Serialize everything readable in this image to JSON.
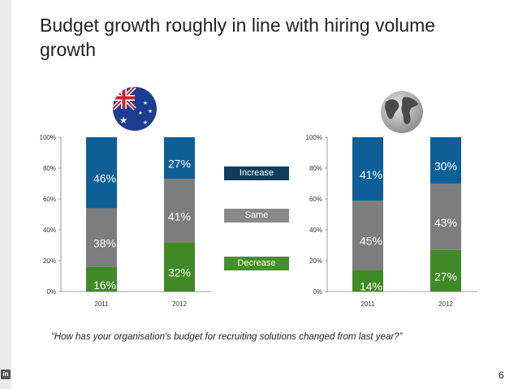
{
  "slide": {
    "title": "Budget growth roughly in line with hiring volume growth",
    "quote": "“How has your organisation's budget for recruiting solutions changed from last year?”",
    "page_number": "6",
    "brand_icon_text": "in"
  },
  "legend": {
    "increase": "Increase",
    "same": "Same",
    "decrease": "Decrease"
  },
  "colors": {
    "increase": "#0d5f96",
    "same": "#7d7d7d",
    "decrease": "#3f8a26",
    "legend_increase": "#123e5e",
    "legend_same": "#8a8a8a",
    "legend_decrease": "#46902a"
  },
  "flags": [
    "australia-flag-icon",
    "globe-icon"
  ],
  "chart_data": [
    {
      "type": "bar",
      "stacked": true,
      "categories": [
        "2011",
        "2012"
      ],
      "ylim": [
        0,
        100
      ],
      "yticks": [
        "0%",
        "20%",
        "40%",
        "60%",
        "80%",
        "100%"
      ],
      "series": [
        {
          "name": "Decrease",
          "values": [
            16,
            32
          ],
          "labels": [
            "16%",
            "32%"
          ]
        },
        {
          "name": "Same",
          "values": [
            38,
            41
          ],
          "labels": [
            "38%",
            "41%"
          ]
        },
        {
          "name": "Increase",
          "values": [
            46,
            27
          ],
          "labels": [
            "46%",
            "27%"
          ]
        }
      ]
    },
    {
      "type": "bar",
      "stacked": true,
      "categories": [
        "2011",
        "2012"
      ],
      "ylim": [
        0,
        100
      ],
      "yticks": [
        "0%",
        "20%",
        "40%",
        "60%",
        "80%",
        "100%"
      ],
      "series": [
        {
          "name": "Decrease",
          "values": [
            14,
            27
          ],
          "labels": [
            "14%",
            "27%"
          ]
        },
        {
          "name": "Same",
          "values": [
            45,
            43
          ],
          "labels": [
            "45%",
            "43%"
          ]
        },
        {
          "name": "Increase",
          "values": [
            41,
            30
          ],
          "labels": [
            "41%",
            "30%"
          ]
        }
      ]
    }
  ]
}
